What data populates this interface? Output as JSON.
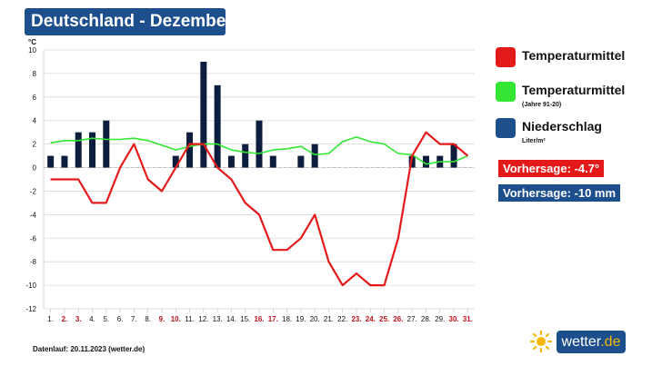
{
  "title": "Deutschland - Dezember",
  "unit": "°C",
  "legend": [
    {
      "label": "Temperaturmittel",
      "sub": "",
      "color": "#e41a1a"
    },
    {
      "label": "Temperaturmittel",
      "sub": "(Jahre 91-20)",
      "color": "#33e633"
    },
    {
      "label": "Niederschlag",
      "sub": "Liter/m²",
      "color": "#1d4f8c"
    }
  ],
  "forecast_temp": "Vorhersage: -4.7°",
  "forecast_precip": "Vorhersage: -10 mm",
  "forecast_temp_color": "#e41a1a",
  "forecast_precip_color": "#1d4f8c",
  "footer": "Datenlauf: 20.11.2023 (wetter.de)",
  "logo": {
    "text": "wetter",
    "suffix": ".de",
    "icon": "sun-icon"
  },
  "chart_data": {
    "type": "bar",
    "ylim": [
      -12,
      10
    ],
    "yticks": [
      -12,
      -10,
      -8,
      -6,
      -4,
      -2,
      0,
      2,
      4,
      6,
      8,
      10
    ],
    "grid": true,
    "categories": [
      "1.",
      "2.",
      "3.",
      "4.",
      "5.",
      "6.",
      "7.",
      "8.",
      "9.",
      "10.",
      "11.",
      "12.",
      "13.",
      "14.",
      "15.",
      "16.",
      "17.",
      "18.",
      "19.",
      "20.",
      "21.",
      "22.",
      "23.",
      "24.",
      "25.",
      "26.",
      "27.",
      "28.",
      "29.",
      "30.",
      "31."
    ],
    "weekend_days": [
      2,
      3,
      9,
      10,
      16,
      17,
      23,
      24,
      25,
      26,
      30,
      31
    ],
    "weekend_color": "#c0141e",
    "series": [
      {
        "name": "Niederschlag",
        "kind": "bar",
        "color": "#0d1d3d",
        "values": [
          1,
          1,
          3,
          3,
          4,
          0,
          0,
          0,
          0,
          1,
          3,
          9,
          7,
          1,
          2,
          4,
          1,
          0,
          1,
          2,
          0,
          0,
          0,
          0,
          0,
          0,
          1,
          1,
          1,
          2,
          0
        ]
      },
      {
        "name": "Temperaturmittel (Jahre 91-20)",
        "kind": "line",
        "color": "#33e633",
        "values": [
          2.1,
          2.3,
          2.3,
          2.5,
          2.4,
          2.4,
          2.5,
          2.3,
          1.9,
          1.5,
          1.8,
          2.0,
          2.0,
          1.5,
          1.3,
          1.2,
          1.5,
          1.6,
          1.8,
          1.1,
          1.2,
          2.2,
          2.6,
          2.2,
          2.0,
          1.2,
          1.1,
          0.3,
          0.5,
          0.5,
          1.0
        ]
      },
      {
        "name": "Temperaturmittel",
        "kind": "line",
        "color": "#e41a1a",
        "values": [
          -1,
          -1,
          -1,
          -3,
          -3,
          0,
          2,
          -1,
          -2,
          0,
          2,
          2,
          0,
          -1,
          -3,
          -4,
          -7,
          -7,
          -6,
          -4,
          -8,
          -10,
          -9,
          -10,
          -10,
          -6,
          1,
          3,
          2,
          2,
          1
        ]
      }
    ]
  }
}
